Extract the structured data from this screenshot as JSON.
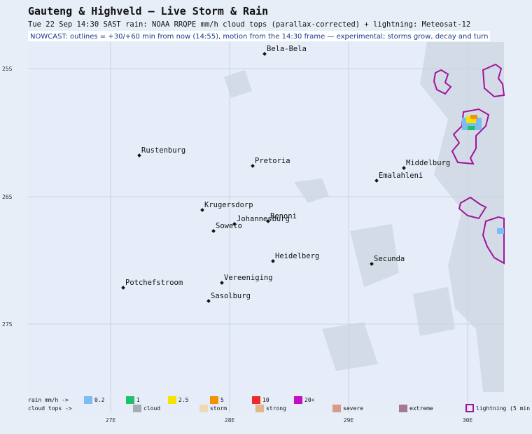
{
  "header": {
    "title": "Gauteng & Highveld – Live Storm & Rain",
    "subtitle": "Tue 22 Sep 14:30 SAST   rain: NOAA RRQPE mm/h   cloud tops (parallax-corrected) + lightning: Meteosat-12"
  },
  "nowcast": "NOWCAST: outlines = +30/+60 min from now (14:55), motion from the 14:30 frame — experimental; storms grow, decay and turn",
  "map": {
    "lat_labels": [
      "25S",
      "26S",
      "27S"
    ],
    "lon_labels": [
      "27E",
      "28E",
      "29E",
      "30E"
    ],
    "places": [
      "Bela-Bela",
      "Rustenburg",
      "Pretoria",
      "Middelburg",
      "Emalahleni",
      "Krugersdorp",
      "Johannesburg",
      "Benoni",
      "Soweto",
      "Heidelberg",
      "Secunda",
      "Potchefstroom",
      "Vereeniging",
      "Sasolburg"
    ]
  },
  "legend": {
    "rain_label": "rain mm/h ->",
    "rain": [
      "0.2",
      "1",
      "2.5",
      "5",
      "10",
      "20+"
    ],
    "cloud_label": "cloud tops ->",
    "cloud": [
      "cloud",
      "storm",
      "strong",
      "severe",
      "extreme"
    ],
    "lightning": "lightning (5 min"
  }
}
